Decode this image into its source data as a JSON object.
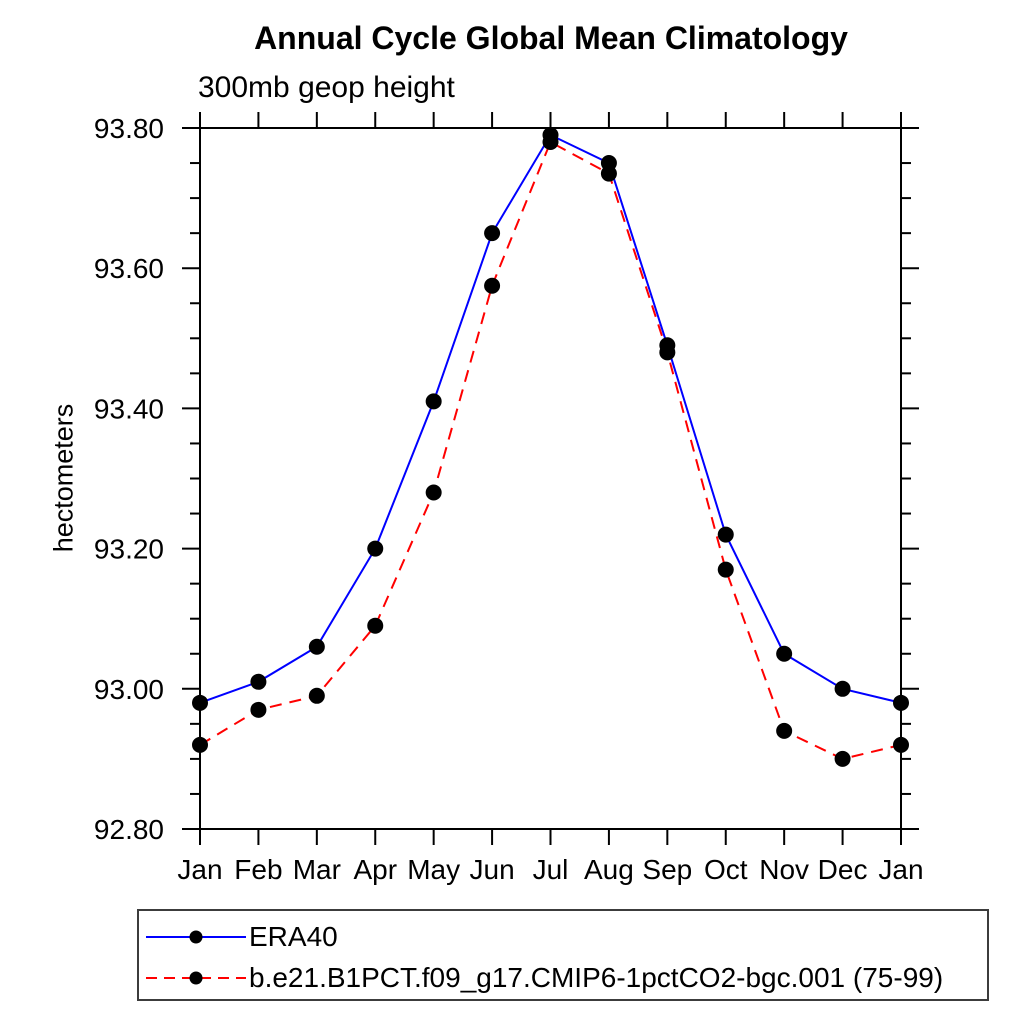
{
  "chart_data": {
    "type": "line",
    "title": "Annual Cycle Global Mean Climatology",
    "subtitle": "300mb geop height",
    "xlabel": "",
    "ylabel": "hectometers",
    "categories": [
      "Jan",
      "Feb",
      "Mar",
      "Apr",
      "May",
      "Jun",
      "Jul",
      "Aug",
      "Sep",
      "Oct",
      "Nov",
      "Dec",
      "Jan"
    ],
    "ylim": [
      92.8,
      93.8
    ],
    "y_major_step": 0.2,
    "y_minor_step": 0.05,
    "y_tick_labels": [
      "92.80",
      "93.00",
      "93.20",
      "93.40",
      "93.60",
      "93.80"
    ],
    "grid": false,
    "legend_position": "bottom-left",
    "series": [
      {
        "name": "ERA40",
        "color": "#0000ff",
        "style": "solid",
        "marker": "filled-circle",
        "marker_color": "#000000",
        "values": [
          92.98,
          93.01,
          93.06,
          93.2,
          93.41,
          93.65,
          93.79,
          93.75,
          93.49,
          93.22,
          93.05,
          93.0,
          92.98
        ]
      },
      {
        "name": "b.e21.B1PCT.f09_g17.CMIP6-1pctCO2-bgc.001 (75-99)",
        "color": "#ff0000",
        "style": "dashed",
        "marker": "filled-circle",
        "marker_color": "#000000",
        "values": [
          92.92,
          92.97,
          92.99,
          93.09,
          93.28,
          93.575,
          93.78,
          93.735,
          93.48,
          93.17,
          92.94,
          92.9,
          92.92
        ]
      }
    ],
    "axis_color": "#000000",
    "background_color": "#ffffff"
  }
}
